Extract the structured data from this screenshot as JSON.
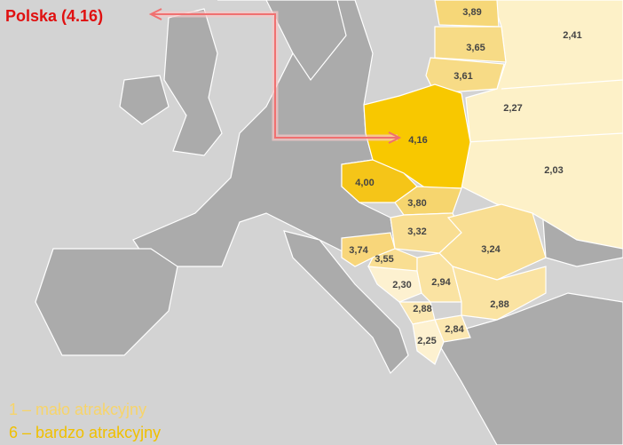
{
  "callout": {
    "label": "Polska (4.16)"
  },
  "regions": [
    {
      "label": "3,89"
    },
    {
      "label": "3,65"
    },
    {
      "label": "3,61"
    },
    {
      "label": "2,41"
    },
    {
      "label": "2,27"
    },
    {
      "label": "4,16"
    },
    {
      "label": "2,03"
    },
    {
      "label": "4,00"
    },
    {
      "label": "3,80"
    },
    {
      "label": "3,32"
    },
    {
      "label": "3,24"
    },
    {
      "label": "3,74"
    },
    {
      "label": "3,55"
    },
    {
      "label": "2,30"
    },
    {
      "label": "2,94"
    },
    {
      "label": "2,88"
    },
    {
      "label": "2,88"
    },
    {
      "label": "2,84"
    },
    {
      "label": "2,25"
    }
  ],
  "legend": [
    {
      "text": "1 – mało atrakcyjny"
    },
    {
      "text": "6 – bardzo atrakcyjny"
    }
  ]
}
